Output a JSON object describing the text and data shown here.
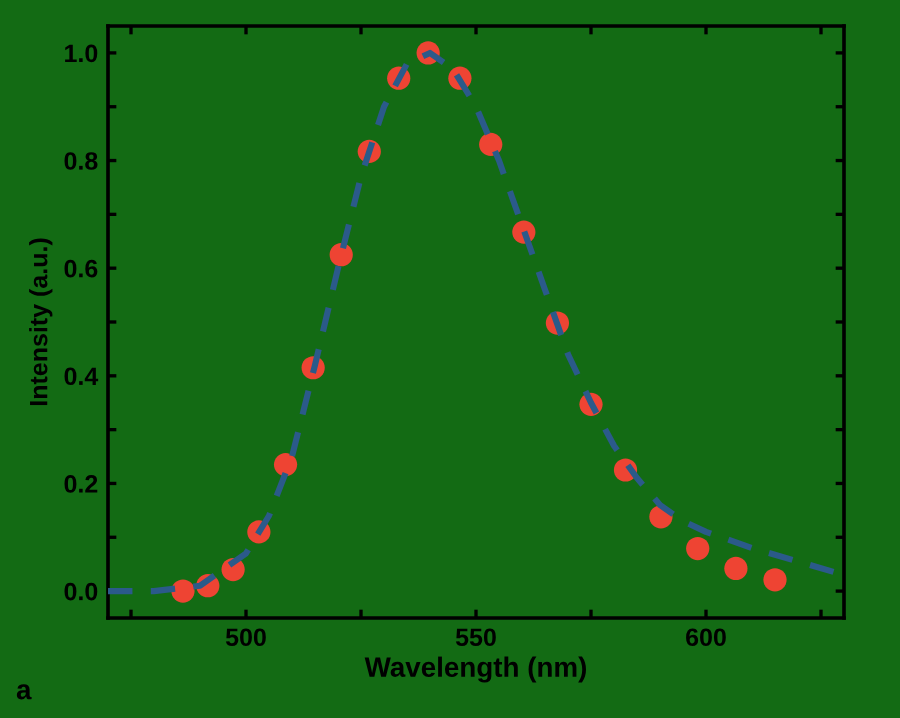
{
  "chart_data": {
    "type": "scatter",
    "xlabel": "Wavelength (nm)",
    "ylabel": "Intensity (a.u.)",
    "annotations": [
      "a"
    ],
    "xlim": [
      470,
      630
    ],
    "ylim": [
      -0.05,
      1.05
    ],
    "xticks": [
      {
        "value": 475,
        "label": null
      },
      500,
      {
        "value": 525,
        "label": null
      },
      550,
      {
        "value": 575,
        "label": null
      },
      600,
      {
        "value": 625,
        "label": null
      }
    ],
    "yticks": [
      {
        "value": 0,
        "label": "0.0"
      },
      {
        "value": 0.1,
        "label": null
      },
      {
        "value": 0.2,
        "label": "0.2"
      },
      {
        "value": 0.3,
        "label": null
      },
      {
        "value": 0.4,
        "label": "0.4"
      },
      {
        "value": 0.5,
        "label": null
      },
      {
        "value": 0.6,
        "label": "0.6"
      },
      {
        "value": 0.7,
        "label": null
      },
      {
        "value": 0.8,
        "label": "0.8"
      },
      {
        "value": 0.9,
        "label": null
      },
      {
        "value": 1.0,
        "label": "1.0"
      }
    ],
    "grid": false,
    "series": [
      {
        "type": "line",
        "color": "#2b5a8a",
        "line_style": "dashed",
        "marker": "none",
        "x": [
          470,
          480,
          490,
          500,
          505,
          510,
          515,
          520,
          525,
          530,
          535,
          540,
          545,
          550,
          555,
          560,
          565,
          570,
          575,
          580,
          585,
          590,
          595,
          600,
          610,
          620,
          630
        ],
        "values": [
          0.0,
          0.0,
          0.01,
          0.07,
          0.14,
          0.25,
          0.42,
          0.6,
          0.77,
          0.9,
          0.98,
          1.0,
          0.97,
          0.9,
          0.8,
          0.68,
          0.56,
          0.44,
          0.35,
          0.27,
          0.21,
          0.16,
          0.13,
          0.11,
          0.08,
          0.055,
          0.03
        ]
      },
      {
        "color": "#ee4433",
        "marker": "circle",
        "x": [
          486.3,
          491.7,
          497.2,
          502.8,
          508.6,
          514.6,
          520.7,
          526.8,
          533.2,
          539.6,
          546.5,
          553.2,
          560.4,
          567.7,
          575,
          582.5,
          590.2,
          598.2,
          606.5,
          615
        ],
        "values": [
          0.0,
          0.01,
          0.04,
          0.11,
          0.235,
          0.415,
          0.625,
          0.817,
          0.953,
          1.0,
          0.953,
          0.83,
          0.667,
          0.498,
          0.347,
          0.225,
          0.138,
          0.079,
          0.042,
          0.021
        ]
      }
    ]
  }
}
